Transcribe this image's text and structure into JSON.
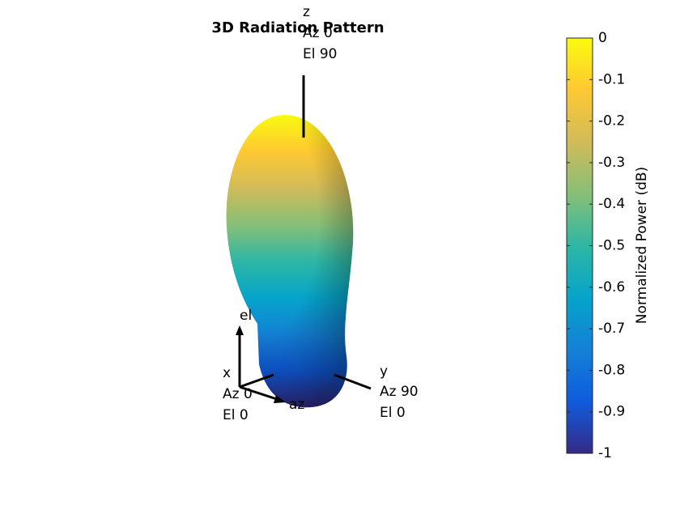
{
  "chart_data": {
    "type": "surface",
    "title": "3D Radiation Pattern",
    "colorbar_label": "Normalized Power (dB)",
    "clim": [
      -1,
      0
    ],
    "cticks": [
      0,
      -0.1,
      -0.2,
      -0.3,
      -0.4,
      -0.5,
      -0.6,
      -0.7,
      -0.8,
      -0.9,
      -1
    ],
    "colormap": [
      "#352a87",
      "#0f5cdd",
      "#1481d6",
      "#06a4ca",
      "#2eb7a4",
      "#87bf77",
      "#d1bb59",
      "#fec832",
      "#f9fb0e"
    ],
    "axis_labels": {
      "z": [
        "z",
        "Az 0",
        "El 90"
      ],
      "x": [
        "x",
        "Az 0",
        "El 0"
      ],
      "y": [
        "y",
        "Az 90",
        "El 0"
      ],
      "el": "el",
      "az": "az"
    }
  }
}
